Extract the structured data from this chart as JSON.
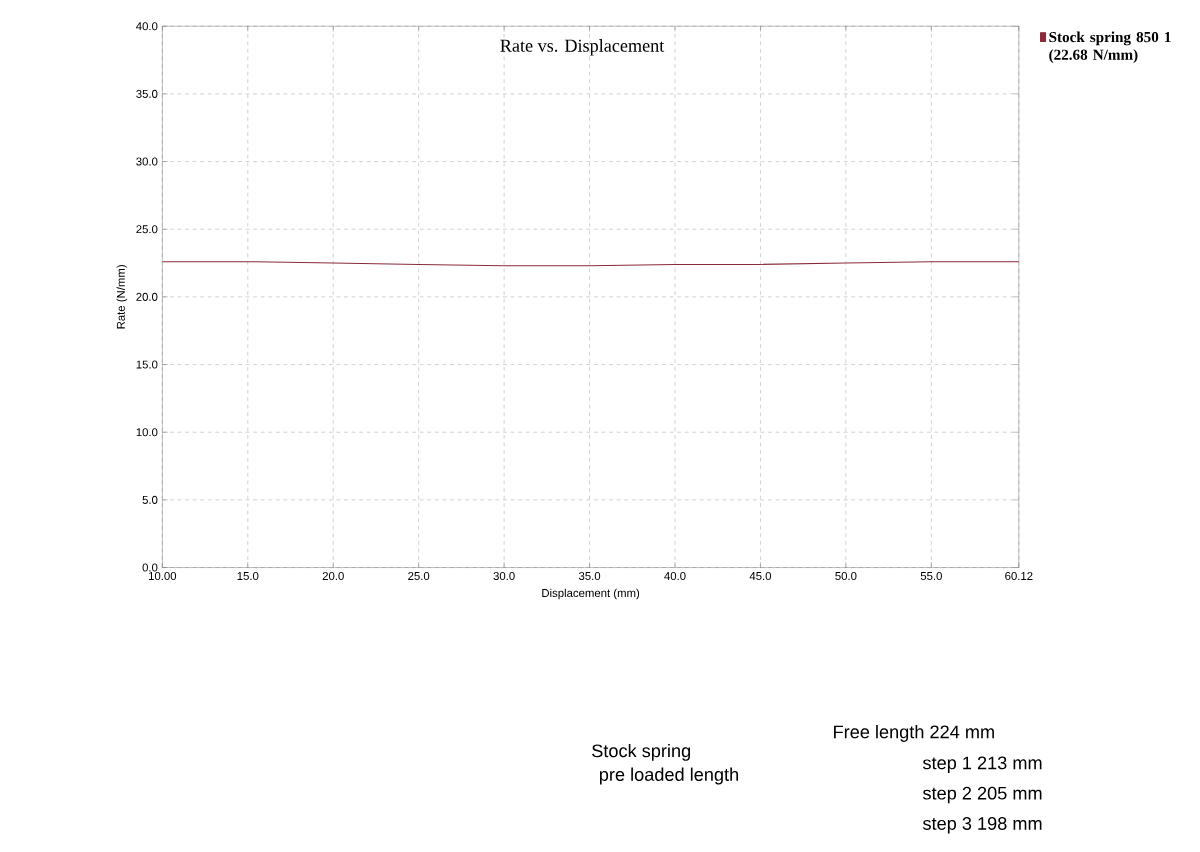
{
  "chart_data": {
    "type": "line",
    "title": "Rate vs. Displacement",
    "xlabel": "Displacement (mm)",
    "ylabel": "Rate (N/mm)",
    "x": [
      10,
      15,
      20,
      25,
      30,
      35,
      40,
      45,
      50,
      55,
      60.12
    ],
    "series": [
      {
        "name": "Stock spring 850 1 (22.68 N/mm)",
        "color": "#8b2a3a",
        "values": [
          22.6,
          22.6,
          22.5,
          22.4,
          22.3,
          22.3,
          22.4,
          22.4,
          22.5,
          22.6,
          22.6
        ]
      }
    ],
    "xlim": [
      10,
      60.12
    ],
    "xticks": [
      {
        "value": 10,
        "label": "10.00"
      },
      {
        "value": 15,
        "label": "15.0"
      },
      {
        "value": 20,
        "label": "20.0"
      },
      {
        "value": 25,
        "label": "25.0"
      },
      {
        "value": 30,
        "label": "30.0"
      },
      {
        "value": 35,
        "label": "35.0"
      },
      {
        "value": 40,
        "label": "40.0"
      },
      {
        "value": 45,
        "label": "45.0"
      },
      {
        "value": 50,
        "label": "50.0"
      },
      {
        "value": 55,
        "label": "55.0"
      },
      {
        "value": 60.12,
        "label": "60.12"
      }
    ],
    "ylim": [
      0,
      40
    ],
    "yticks": [
      {
        "value": 0,
        "label": "0.0"
      },
      {
        "value": 5,
        "label": "5.0"
      },
      {
        "value": 10,
        "label": "10.0"
      },
      {
        "value": 15,
        "label": "15.0"
      },
      {
        "value": 20,
        "label": "20.0"
      },
      {
        "value": 25,
        "label": "25.0"
      },
      {
        "value": 30,
        "label": "30.0"
      },
      {
        "value": 35,
        "label": "35.0"
      },
      {
        "value": 40,
        "label": "40.0"
      }
    ],
    "grid": true,
    "legend": "top right",
    "annotations": [
      "Stock spring",
      "pre loaded length",
      "Free length 224 mm",
      "step 1 213 mm",
      "step 2 205 mm",
      "step 3 198 mm"
    ]
  }
}
